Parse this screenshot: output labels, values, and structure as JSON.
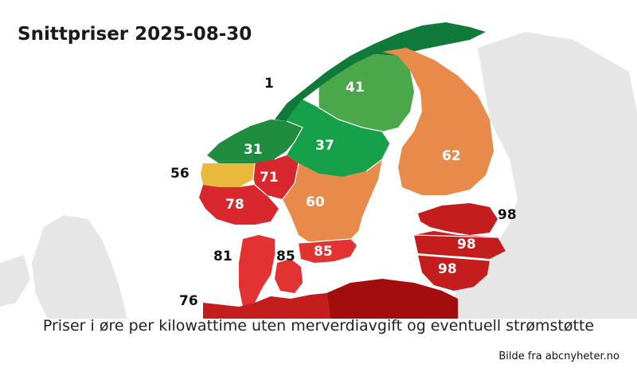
{
  "title": "Snittpriser 2025-08-30",
  "caption": "Priser i øre per kilowattime uten merverdiavgift og eventuell strømstøtte",
  "source": "Bilde fra abcnyheter.no",
  "regions": [
    {
      "id": "NO4",
      "value": "1",
      "color": "#0f7a3a"
    },
    {
      "id": "SE1",
      "value": "41",
      "color": "#4aa84a"
    },
    {
      "id": "NO3",
      "value": "31",
      "color": "#1f8c3f"
    },
    {
      "id": "SE2",
      "value": "37",
      "color": "#16a049"
    },
    {
      "id": "FI",
      "value": "62",
      "color": "#e88a4a"
    },
    {
      "id": "NO5",
      "value": "56",
      "color": "#eab83a"
    },
    {
      "id": "NO1",
      "value": "71",
      "color": "#d9272e"
    },
    {
      "id": "NO2",
      "value": "78",
      "color": "#d9272e"
    },
    {
      "id": "SE3",
      "value": "60",
      "color": "#e88a4a"
    },
    {
      "id": "SE4",
      "value": "85",
      "color": "#e23232"
    },
    {
      "id": "DK2",
      "value": "85",
      "color": "#e23232"
    },
    {
      "id": "DK1",
      "value": "81",
      "color": "#e23232"
    },
    {
      "id": "DE",
      "value": "76",
      "color": "#c41d1d"
    },
    {
      "id": "EE",
      "value": "98",
      "color": "#c41d1d"
    },
    {
      "id": "LV",
      "value": "98",
      "color": "#c41d1d"
    },
    {
      "id": "LT",
      "value": "98",
      "color": "#c41d1d"
    }
  ],
  "colors": {
    "background_land": "#e6e6e6",
    "sea": "#ffffff",
    "poland": "#a30d0d"
  }
}
